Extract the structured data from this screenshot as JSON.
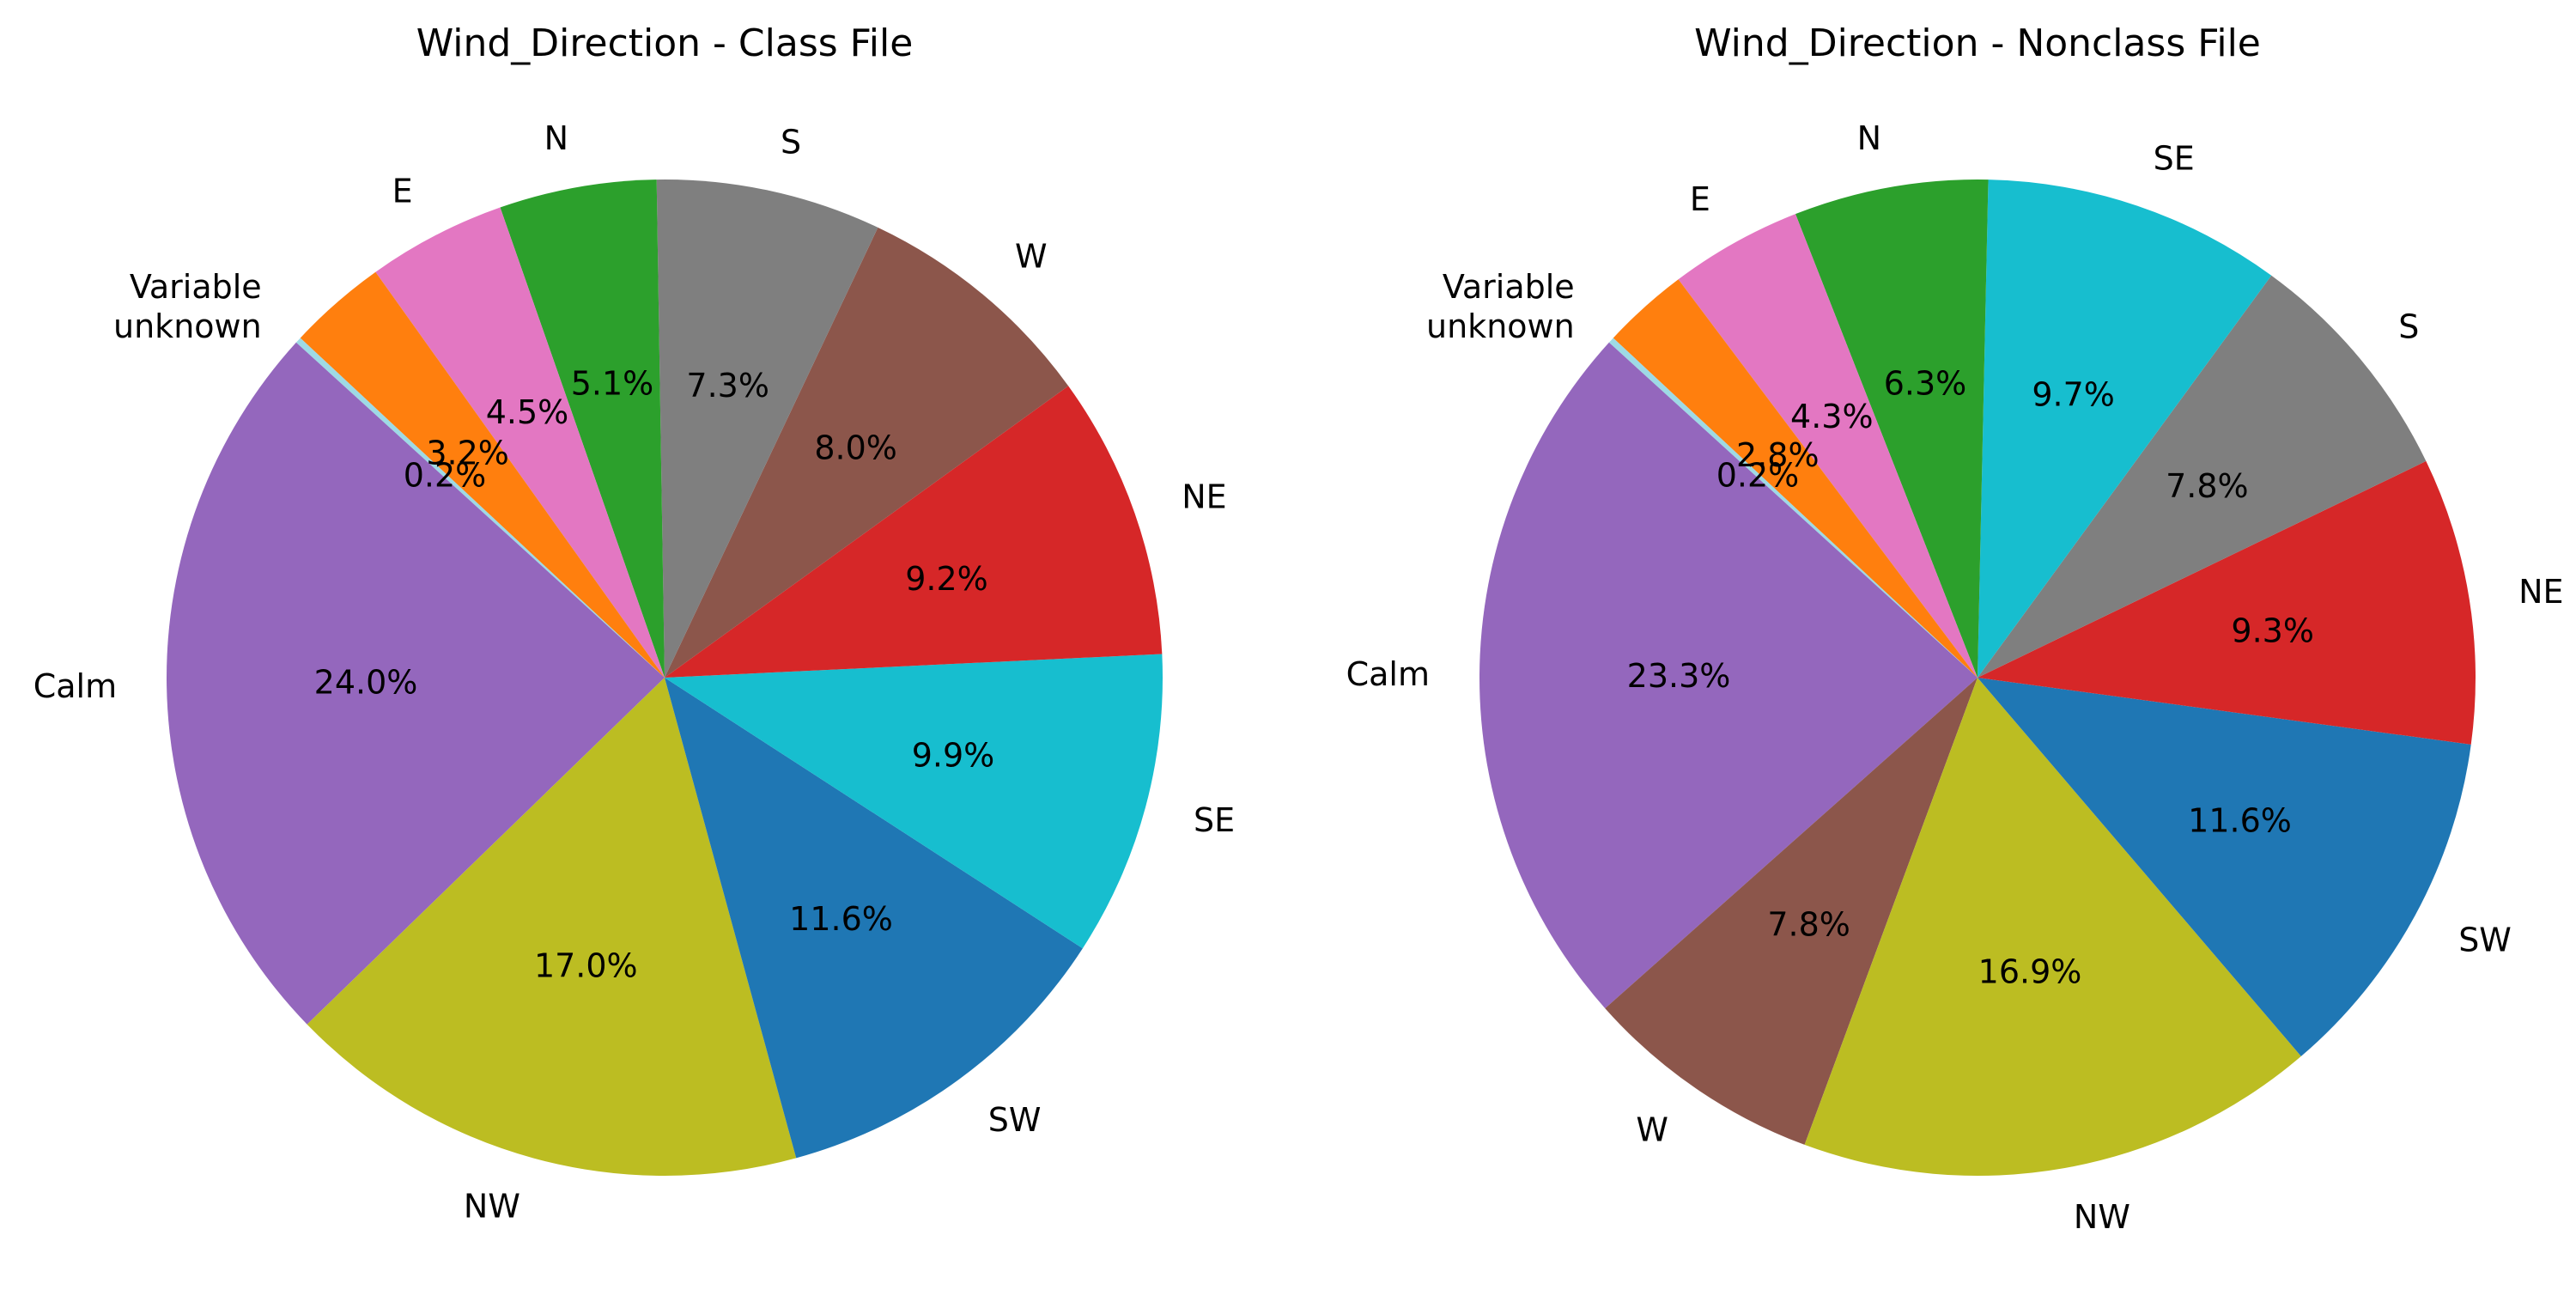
{
  "chart_data": [
    {
      "type": "pie",
      "title": "Wind_Direction - Class File",
      "slices": [
        {
          "label": "Variable unknown",
          "label_lines": [
            "Variable",
            "unknown"
          ],
          "value": 0.2,
          "pct_text": "0.2%",
          "color": "#9edae5"
        },
        {
          "label": "Calm",
          "label_lines": [
            "Calm"
          ],
          "value": 24.0,
          "pct_text": "24.0%",
          "color": "#9467bd"
        },
        {
          "label": "NW",
          "label_lines": [
            "NW"
          ],
          "value": 17.0,
          "pct_text": "17.0%",
          "color": "#bcbd22"
        },
        {
          "label": "SW",
          "label_lines": [
            "SW"
          ],
          "value": 11.6,
          "pct_text": "11.6%",
          "color": "#1f77b4"
        },
        {
          "label": "SE",
          "label_lines": [
            "SE"
          ],
          "value": 9.9,
          "pct_text": "9.9%",
          "color": "#17becf"
        },
        {
          "label": "NE",
          "label_lines": [
            "NE"
          ],
          "value": 9.2,
          "pct_text": "9.2%",
          "color": "#d62728"
        },
        {
          "label": "W",
          "label_lines": [
            "W"
          ],
          "value": 8.0,
          "pct_text": "8.0%",
          "color": "#8c564b"
        },
        {
          "label": "S",
          "label_lines": [
            "S"
          ],
          "value": 7.3,
          "pct_text": "7.3%",
          "color": "#7f7f7f"
        },
        {
          "label": "N",
          "label_lines": [
            "N"
          ],
          "value": 5.1,
          "pct_text": "5.1%",
          "color": "#2ca02c"
        },
        {
          "label": "E",
          "label_lines": [
            "E"
          ],
          "value": 4.5,
          "pct_text": "4.5%",
          "color": "#e377c2"
        },
        {
          "label": "",
          "label_lines": [],
          "value": 3.2,
          "pct_text": "3.2%",
          "color": "#ff7f0e"
        }
      ]
    },
    {
      "type": "pie",
      "title": "Wind_Direction - Nonclass File",
      "slices": [
        {
          "label": "Variable unknown",
          "label_lines": [
            "Variable",
            "unknown"
          ],
          "value": 0.2,
          "pct_text": "0.2%",
          "color": "#9edae5"
        },
        {
          "label": "Calm",
          "label_lines": [
            "Calm"
          ],
          "value": 23.3,
          "pct_text": "23.3%",
          "color": "#9467bd"
        },
        {
          "label": "W",
          "label_lines": [
            "W"
          ],
          "value": 7.8,
          "pct_text": "7.8%",
          "color": "#8c564b"
        },
        {
          "label": "NW",
          "label_lines": [
            "NW"
          ],
          "value": 16.9,
          "pct_text": "16.9%",
          "color": "#bcbd22"
        },
        {
          "label": "SW",
          "label_lines": [
            "SW"
          ],
          "value": 11.6,
          "pct_text": "11.6%",
          "color": "#1f77b4"
        },
        {
          "label": "NE",
          "label_lines": [
            "NE"
          ],
          "value": 9.3,
          "pct_text": "9.3%",
          "color": "#d62728"
        },
        {
          "label": "S",
          "label_lines": [
            "S"
          ],
          "value": 7.8,
          "pct_text": "7.8%",
          "color": "#7f7f7f"
        },
        {
          "label": "SE",
          "label_lines": [
            "SE"
          ],
          "value": 9.7,
          "pct_text": "9.7%",
          "color": "#17becf"
        },
        {
          "label": "N",
          "label_lines": [
            "N"
          ],
          "value": 6.3,
          "pct_text": "6.3%",
          "color": "#2ca02c"
        },
        {
          "label": "E",
          "label_lines": [
            "E"
          ],
          "value": 4.3,
          "pct_text": "4.3%",
          "color": "#e377c2"
        },
        {
          "label": "",
          "label_lines": [],
          "value": 2.8,
          "pct_text": "2.8%",
          "color": "#ff7f0e"
        }
      ]
    }
  ]
}
